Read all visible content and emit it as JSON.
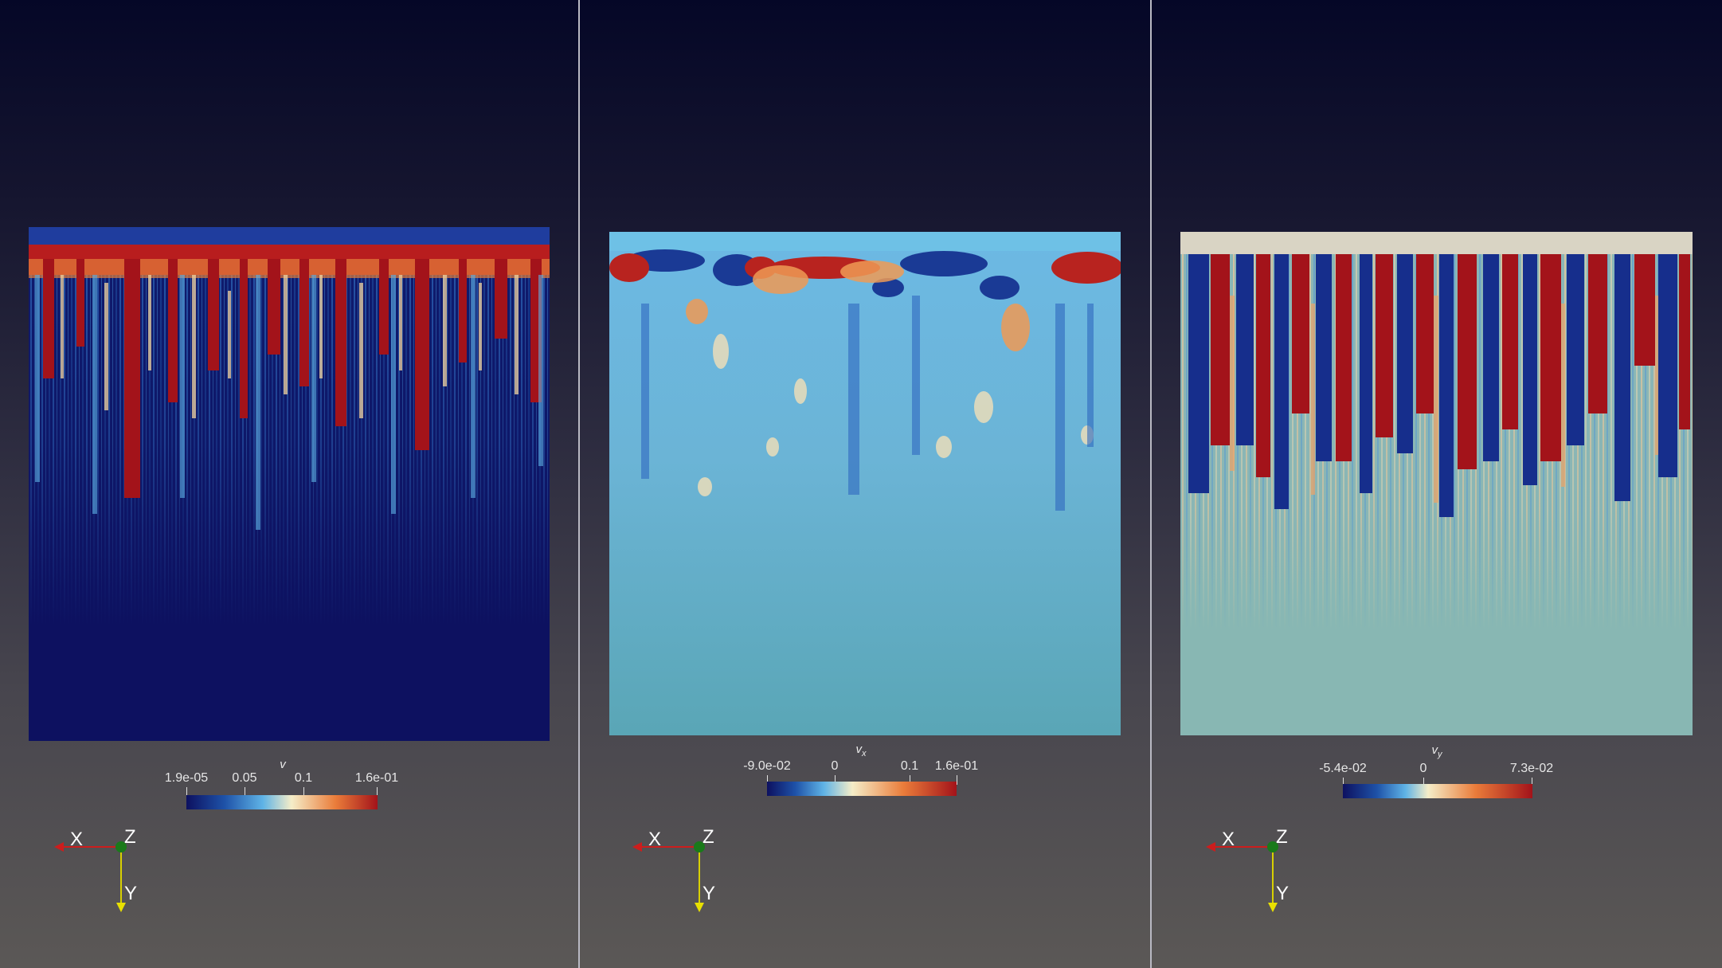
{
  "colors": {
    "divider": "#b9b9c3",
    "map": [
      "#0d1160",
      "#1e52a8",
      "#5fb3e6",
      "#f5edc8",
      "#ea7c3a",
      "#a3131a"
    ]
  },
  "panels": [
    {
      "id": "velocity-magnitude",
      "title": "v",
      "title_sub": "",
      "ticks": [
        "1.9e-05",
        "0.05",
        "0.1",
        "1.6e-01"
      ],
      "axes": {
        "x": "X",
        "y": "Y",
        "z": "Z"
      }
    },
    {
      "id": "velocity-x",
      "title": "v",
      "title_sub": "x",
      "ticks": [
        "-9.0e-02",
        "0",
        "0.1",
        "1.6e-01"
      ],
      "axes": {
        "x": "X",
        "y": "Y",
        "z": "Z"
      }
    },
    {
      "id": "velocity-y",
      "title": "v",
      "title_sub": "y",
      "ticks": [
        "-5.4e-02",
        "0",
        "7.3e-02"
      ],
      "axes": {
        "x": "X",
        "y": "Y",
        "z": "Z"
      }
    }
  ]
}
